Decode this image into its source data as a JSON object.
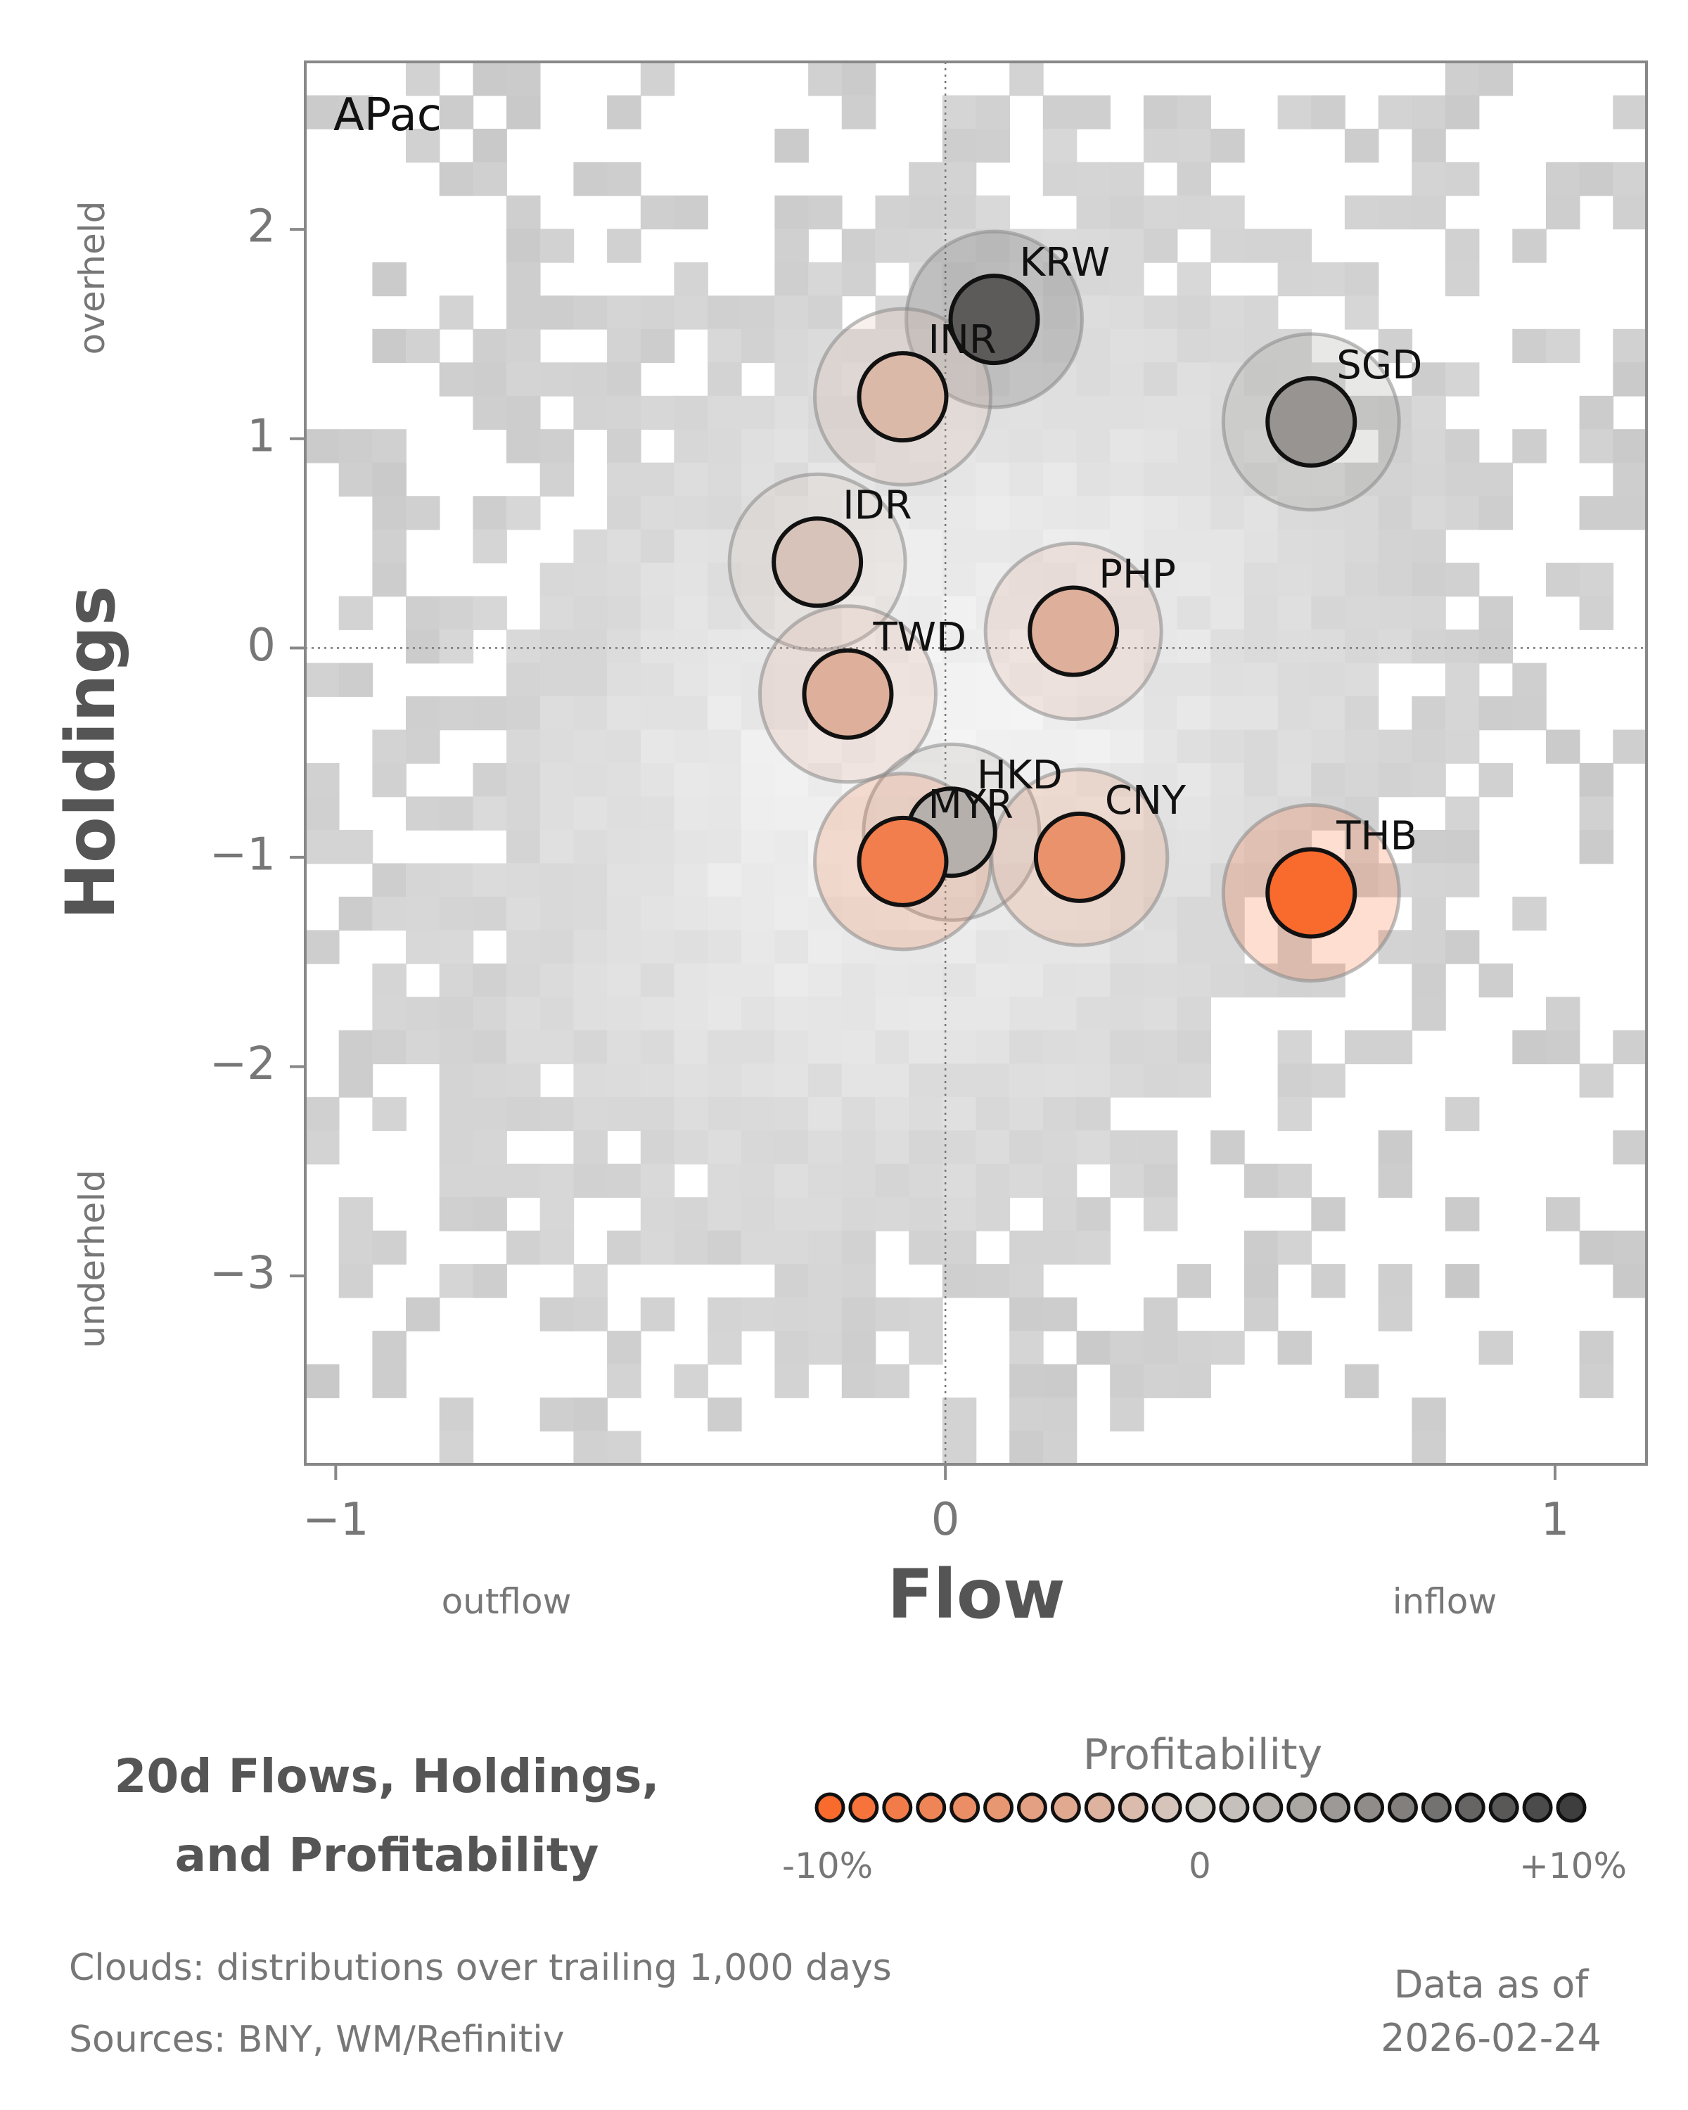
{
  "chart_data": {
    "type": "scatter",
    "panel_label": "APac",
    "xlabel": "Flow",
    "ylabel": "Holdings",
    "x_hint_left": "outflow",
    "x_hint_right": "inflow",
    "y_hint_top": "overheld",
    "y_hint_bottom": "underheld",
    "xlim": [
      -1.05,
      1.15
    ],
    "ylim": [
      -3.9,
      2.8
    ],
    "xticks": [
      {
        "value": -1,
        "label": "−1"
      },
      {
        "value": 0,
        "label": "0"
      },
      {
        "value": 1,
        "label": "1"
      }
    ],
    "yticks": [
      {
        "value": 2,
        "label": "2"
      },
      {
        "value": 1,
        "label": "1"
      },
      {
        "value": 0,
        "label": "0"
      },
      {
        "value": -1,
        "label": "−1"
      },
      {
        "value": -2,
        "label": "−2"
      },
      {
        "value": -3,
        "label": "−3"
      }
    ],
    "reference_lines": {
      "x": 0,
      "y": 0
    },
    "points": [
      {
        "label": "KRW",
        "flow": 0.08,
        "holdings": 1.57,
        "profitability": 8
      },
      {
        "label": "INR",
        "flow": -0.07,
        "holdings": 1.2,
        "profitability": -2
      },
      {
        "label": "SGD",
        "flow": 0.6,
        "holdings": 1.08,
        "profitability": 4
      },
      {
        "label": "IDR",
        "flow": -0.21,
        "holdings": 0.41,
        "profitability": -1
      },
      {
        "label": "PHP",
        "flow": 0.21,
        "holdings": 0.08,
        "profitability": -3
      },
      {
        "label": "TWD",
        "flow": -0.16,
        "holdings": -0.22,
        "profitability": -3
      },
      {
        "label": "HKD",
        "flow": 0.01,
        "holdings": -0.88,
        "profitability": 2
      },
      {
        "label": "MYR",
        "flow": -0.07,
        "holdings": -1.02,
        "profitability": -8
      },
      {
        "label": "CNY",
        "flow": 0.22,
        "holdings": -1.0,
        "profitability": -6
      },
      {
        "label": "THB",
        "flow": 0.6,
        "holdings": -1.17,
        "profitability": -10
      }
    ],
    "cloud": {
      "description": "distributions over trailing 1,000 days",
      "bins_x": 40,
      "bins_y": 42
    },
    "colorbar": {
      "title": "Profitability",
      "min": -10,
      "max": 10,
      "tick_labels": [
        "-10%",
        "0",
        "+10%"
      ],
      "low_color": "#f96a2d",
      "mid_color": "#d3cdc8",
      "high_color": "#3e3e3e"
    }
  },
  "title_line1": "20d Flows, Holdings,",
  "title_line2": "and Profitability",
  "footnote_clouds": "Clouds:  distributions over trailing 1,000 days",
  "footnote_sources": "Sources:  BNY, WM/Refinitiv",
  "asof_label": "Data as of",
  "asof_date": "2026-02-24"
}
